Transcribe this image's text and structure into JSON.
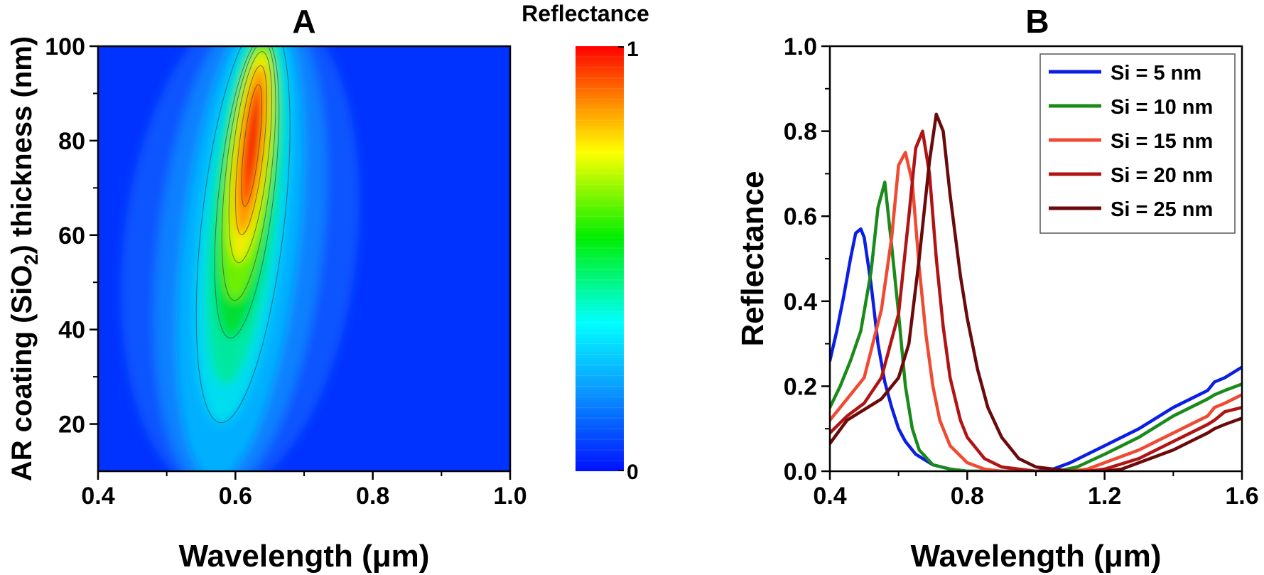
{
  "chart_data": [
    {
      "panel_label": "A",
      "type": "heatmap",
      "xlabel": "Wavelength (μm)",
      "ylabel_parts": [
        "AR coating (SiO",
        "2",
        ") thickness (nm)"
      ],
      "xlim": [
        0.4,
        1.0
      ],
      "ylim": [
        10,
        100
      ],
      "xticks": [
        0.4,
        0.6,
        0.8,
        1.0
      ],
      "xtick_labels": [
        "0.4",
        "0.6",
        "0.8",
        "1.0"
      ],
      "yticks": [
        20,
        40,
        60,
        80,
        100
      ],
      "ytick_labels": [
        "20",
        "40",
        "60",
        "80",
        "100"
      ],
      "colorbar": {
        "title": "Reflectance",
        "range": [
          0,
          1
        ],
        "tick_labels": [
          "0",
          "1"
        ],
        "colormap": "rainbow (blue-cyan-green-yellow-red)"
      },
      "peak": {
        "wavelength_at_10nm": 0.57,
        "wavelength_at_100nm": 0.64,
        "max_reflectance": 0.96,
        "max_at_thickness": 80
      },
      "background": "#0033ff"
    },
    {
      "panel_label": "B",
      "type": "line",
      "xlabel": "Wavelength (μm)",
      "ylabel": "Reflectance",
      "xlim": [
        0.4,
        1.6
      ],
      "ylim": [
        0.0,
        1.0
      ],
      "xticks": [
        0.4,
        0.8,
        1.2,
        1.6
      ],
      "xtick_labels": [
        "0.4",
        "0.8",
        "1.2",
        "1.6"
      ],
      "yticks": [
        0.0,
        0.2,
        0.4,
        0.6,
        0.8,
        1.0
      ],
      "ytick_labels": [
        "0.0",
        "0.2",
        "0.4",
        "0.6",
        "0.8",
        "1.0"
      ],
      "legend_position": "top-right",
      "series": [
        {
          "name": "Si = 5 nm",
          "color": "#0a1ee6",
          "x": [
            0.4,
            0.42,
            0.44,
            0.46,
            0.475,
            0.49,
            0.5,
            0.52,
            0.54,
            0.56,
            0.58,
            0.6,
            0.62,
            0.65,
            0.7,
            0.75,
            0.8,
            1.0,
            1.05,
            1.1,
            1.2,
            1.3,
            1.4,
            1.45,
            1.5,
            1.52,
            1.55,
            1.6
          ],
          "y": [
            0.26,
            0.33,
            0.41,
            0.5,
            0.56,
            0.57,
            0.55,
            0.44,
            0.3,
            0.21,
            0.15,
            0.1,
            0.07,
            0.04,
            0.015,
            0.005,
            0.0,
            0.0,
            0.005,
            0.02,
            0.06,
            0.1,
            0.15,
            0.17,
            0.19,
            0.21,
            0.22,
            0.245
          ]
        },
        {
          "name": "Si = 10 nm",
          "color": "#1a8a1a",
          "x": [
            0.4,
            0.43,
            0.46,
            0.49,
            0.52,
            0.54,
            0.56,
            0.58,
            0.6,
            0.62,
            0.64,
            0.66,
            0.7,
            0.75,
            0.8,
            1.0,
            1.08,
            1.12,
            1.2,
            1.3,
            1.4,
            1.45,
            1.5,
            1.52,
            1.55,
            1.6
          ],
          "y": [
            0.15,
            0.2,
            0.26,
            0.33,
            0.47,
            0.62,
            0.68,
            0.53,
            0.37,
            0.2,
            0.1,
            0.05,
            0.015,
            0.005,
            0.0,
            0.0,
            0.003,
            0.01,
            0.04,
            0.08,
            0.13,
            0.15,
            0.17,
            0.18,
            0.19,
            0.205
          ]
        },
        {
          "name": "Si = 15 nm",
          "color": "#f04a32",
          "x": [
            0.4,
            0.45,
            0.5,
            0.55,
            0.58,
            0.6,
            0.62,
            0.64,
            0.66,
            0.68,
            0.7,
            0.72,
            0.75,
            0.8,
            0.85,
            0.9,
            1.0,
            1.1,
            1.15,
            1.2,
            1.3,
            1.4,
            1.45,
            1.5,
            1.52,
            1.55,
            1.6
          ],
          "y": [
            0.12,
            0.17,
            0.22,
            0.38,
            0.55,
            0.72,
            0.75,
            0.68,
            0.48,
            0.32,
            0.2,
            0.12,
            0.06,
            0.02,
            0.005,
            0.0,
            0.0,
            0.0,
            0.005,
            0.02,
            0.05,
            0.09,
            0.11,
            0.13,
            0.15,
            0.16,
            0.18
          ]
        },
        {
          "name": "Si = 20 nm",
          "color": "#b01414",
          "x": [
            0.4,
            0.45,
            0.5,
            0.55,
            0.6,
            0.63,
            0.65,
            0.67,
            0.69,
            0.71,
            0.73,
            0.75,
            0.78,
            0.8,
            0.85,
            0.9,
            1.0,
            1.1,
            1.15,
            1.2,
            1.3,
            1.4,
            1.45,
            1.5,
            1.52,
            1.55,
            1.6
          ],
          "y": [
            0.09,
            0.13,
            0.16,
            0.22,
            0.37,
            0.6,
            0.76,
            0.8,
            0.7,
            0.5,
            0.34,
            0.22,
            0.12,
            0.08,
            0.03,
            0.01,
            0.0,
            0.0,
            0.0,
            0.005,
            0.03,
            0.07,
            0.09,
            0.11,
            0.12,
            0.14,
            0.15
          ]
        },
        {
          "name": "Si = 25 nm",
          "color": "#6b0a0a",
          "x": [
            0.4,
            0.45,
            0.5,
            0.55,
            0.6,
            0.63,
            0.66,
            0.69,
            0.71,
            0.73,
            0.75,
            0.78,
            0.8,
            0.83,
            0.86,
            0.9,
            0.95,
            1.0,
            1.1,
            1.15,
            1.2,
            1.25,
            1.3,
            1.4,
            1.45,
            1.5,
            1.52,
            1.55,
            1.6
          ],
          "y": [
            0.065,
            0.12,
            0.145,
            0.17,
            0.22,
            0.3,
            0.5,
            0.73,
            0.84,
            0.8,
            0.65,
            0.46,
            0.36,
            0.24,
            0.15,
            0.08,
            0.03,
            0.01,
            0.0,
            0.0,
            0.0,
            0.005,
            0.02,
            0.05,
            0.07,
            0.09,
            0.1,
            0.11,
            0.125
          ]
        }
      ]
    }
  ]
}
